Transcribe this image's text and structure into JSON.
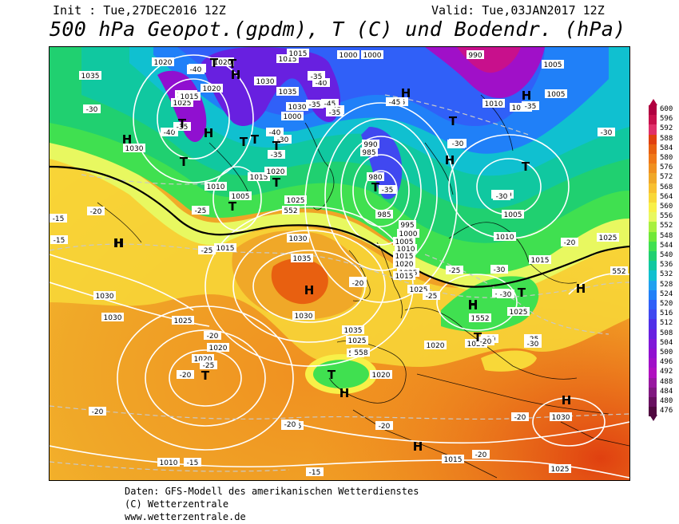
{
  "header": {
    "init": "Init : Tue,27DEC2016 12Z",
    "valid": "Valid: Tue,03JAN2017 12Z",
    "title": "500 hPa Geopot.(gpdm), T (C) und Bodendr. (hPa)"
  },
  "footer": {
    "line1": "Daten: GFS-Modell des amerikanischen Wetterdienstes",
    "line2": "(C) Wetterzentrale",
    "line3": "www.wetterzentrale.de"
  },
  "legend": {
    "levels": [
      "600",
      "596",
      "592",
      "588",
      "584",
      "580",
      "576",
      "572",
      "568",
      "564",
      "560",
      "556",
      "552",
      "548",
      "544",
      "540",
      "536",
      "532",
      "528",
      "524",
      "520",
      "516",
      "512",
      "508",
      "504",
      "500",
      "496",
      "492",
      "488",
      "484",
      "480",
      "476"
    ],
    "colors": [
      "#b00040",
      "#c8104c",
      "#e0306a",
      "#e04010",
      "#e86010",
      "#f07818",
      "#f09020",
      "#f0a828",
      "#f8c030",
      "#f8d838",
      "#f8f048",
      "#e8f860",
      "#a8f040",
      "#70e838",
      "#40e050",
      "#20d070",
      "#10c8a0",
      "#10c0d0",
      "#20a0f0",
      "#2080f8",
      "#3060f8",
      "#4048f0",
      "#5030e8",
      "#6820e0",
      "#8018d8",
      "#9010d0",
      "#a010c8",
      "#b010c0",
      "#9818a0",
      "#801880",
      "#681060",
      "#500840"
    ]
  },
  "labels": {
    "pressure": [
      {
        "t": "1020"
      },
      {
        "t": "1020"
      },
      {
        "t": "1015"
      },
      {
        "t": "1015"
      },
      {
        "t": "1000"
      },
      {
        "t": "1000"
      },
      {
        "t": "990"
      },
      {
        "t": "1005"
      },
      {
        "t": "1035"
      },
      {
        "t": "1025"
      },
      {
        "t": "1030"
      },
      {
        "t": "1035"
      },
      {
        "t": "1030"
      },
      {
        "t": "1000"
      },
      {
        "t": "1010"
      },
      {
        "t": "1010"
      },
      {
        "t": "1005"
      },
      {
        "t": "1015"
      },
      {
        "t": "1030"
      },
      {
        "t": "990"
      },
      {
        "t": "985"
      },
      {
        "t": "980"
      },
      {
        "t": "1020"
      },
      {
        "t": "1010"
      },
      {
        "t": "1005"
      },
      {
        "t": "1015"
      },
      {
        "t": "1000"
      },
      {
        "t": "1005"
      },
      {
        "t": "1030"
      },
      {
        "t": "1020"
      },
      {
        "t": "1025"
      },
      {
        "t": "985"
      },
      {
        "t": "995"
      },
      {
        "t": "1000"
      },
      {
        "t": "1005"
      },
      {
        "t": "1010"
      },
      {
        "t": "1015"
      },
      {
        "t": "1020"
      },
      {
        "t": "1025"
      },
      {
        "t": "1010"
      },
      {
        "t": "1015"
      },
      {
        "t": "1025"
      },
      {
        "t": "1015"
      },
      {
        "t": "1030"
      },
      {
        "t": "1035"
      },
      {
        "t": "1030"
      },
      {
        "t": "1030"
      },
      {
        "t": "1035"
      },
      {
        "t": "1025"
      },
      {
        "t": "1030"
      },
      {
        "t": "1025"
      },
      {
        "t": "1020"
      },
      {
        "t": "1020"
      },
      {
        "t": "1020"
      },
      {
        "t": "1015"
      },
      {
        "t": "1010"
      },
      {
        "t": "1020"
      },
      {
        "t": "1025"
      },
      {
        "t": "1020"
      },
      {
        "t": "1030"
      },
      {
        "t": "1015"
      },
      {
        "t": "1025"
      },
      {
        "t": "1015"
      },
      {
        "t": "1025"
      },
      {
        "t": "1025"
      }
    ],
    "temperature": [
      {
        "t": "-40"
      },
      {
        "t": "-40"
      },
      {
        "t": "-45"
      },
      {
        "t": "-40"
      },
      {
        "t": "-45"
      },
      {
        "t": "-45"
      },
      {
        "t": "-30"
      },
      {
        "t": "-40"
      },
      {
        "t": "-35"
      },
      {
        "t": "-45"
      },
      {
        "t": "-35"
      },
      {
        "t": "-40"
      },
      {
        "t": "-30"
      },
      {
        "t": "-35"
      },
      {
        "t": "-40"
      },
      {
        "t": "-30"
      },
      {
        "t": "-35"
      },
      {
        "t": "-30"
      },
      {
        "t": "-35"
      },
      {
        "t": "-25"
      },
      {
        "t": "-20"
      },
      {
        "t": "-15"
      },
      {
        "t": "-25"
      },
      {
        "t": "-20"
      },
      {
        "t": "-25"
      },
      {
        "t": "-30"
      },
      {
        "t": "-25"
      },
      {
        "t": "-30"
      },
      {
        "t": "-20"
      },
      {
        "t": "-25"
      },
      {
        "t": "-20"
      },
      {
        "t": "-20"
      },
      {
        "t": "-20"
      },
      {
        "t": "-20"
      },
      {
        "t": "-20"
      },
      {
        "t": "-20"
      },
      {
        "t": "-15"
      },
      {
        "t": "-15"
      },
      {
        "t": "-15"
      },
      {
        "t": "-20"
      },
      {
        "t": "-20"
      },
      {
        "t": "-30"
      },
      {
        "t": "-30"
      },
      {
        "t": "-25"
      },
      {
        "t": "-20"
      },
      {
        "t": "-30"
      },
      {
        "t": "-30"
      },
      {
        "t": "-40"
      },
      {
        "t": "-35"
      },
      {
        "t": "-45"
      },
      {
        "t": "-35"
      }
    ],
    "geopotential": [
      {
        "t": "552"
      },
      {
        "t": "552"
      },
      {
        "t": "552"
      },
      {
        "t": "552"
      },
      {
        "t": "552"
      },
      {
        "t": "558"
      }
    ],
    "centers": [
      {
        "t": "H"
      },
      {
        "t": "T"
      },
      {
        "t": "H"
      },
      {
        "t": "T"
      },
      {
        "t": "H"
      },
      {
        "t": "T"
      },
      {
        "t": "T"
      },
      {
        "t": "T"
      },
      {
        "t": "T"
      },
      {
        "t": "H"
      },
      {
        "t": "T"
      },
      {
        "t": "T"
      },
      {
        "t": "H"
      },
      {
        "t": "T"
      },
      {
        "t": "H"
      },
      {
        "t": "T"
      },
      {
        "t": "H"
      },
      {
        "t": "T"
      },
      {
        "t": "H"
      },
      {
        "t": "H"
      },
      {
        "t": "T"
      },
      {
        "t": "H"
      },
      {
        "t": "T"
      },
      {
        "t": "T"
      },
      {
        "t": "T"
      },
      {
        "t": "H"
      },
      {
        "t": "H"
      },
      {
        "t": "H"
      },
      {
        "t": "H"
      },
      {
        "t": "T"
      },
      {
        "t": "H"
      }
    ]
  }
}
